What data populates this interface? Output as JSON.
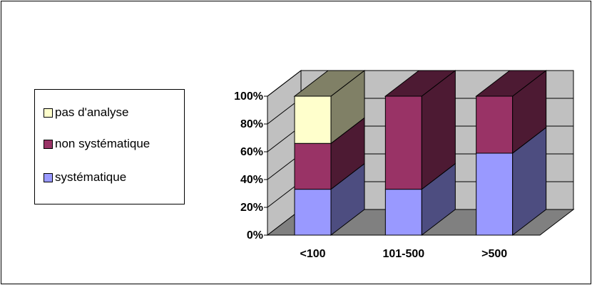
{
  "chart_data": {
    "type": "bar",
    "stacked": true,
    "three_d": true,
    "categories": [
      "<100",
      "101-500",
      ">500"
    ],
    "series": [
      {
        "name": "systématique",
        "values": [
          33,
          33,
          59
        ],
        "color": "#9999ff",
        "side_color": "#4d4d80"
      },
      {
        "name": "non systématique",
        "values": [
          33,
          67,
          41
        ],
        "color": "#993366",
        "side_color": "#4d1a33"
      },
      {
        "name": "pas d'analyse",
        "values": [
          34,
          0,
          0
        ],
        "color": "#ffffcc",
        "side_color": "#808066"
      }
    ],
    "y_ticks": [
      "0%",
      "20%",
      "40%",
      "60%",
      "80%",
      "100%"
    ],
    "ylim": [
      0,
      100
    ],
    "legend_position": "left",
    "wall_color": "#c0c0c0",
    "floor_color": "#808080"
  }
}
